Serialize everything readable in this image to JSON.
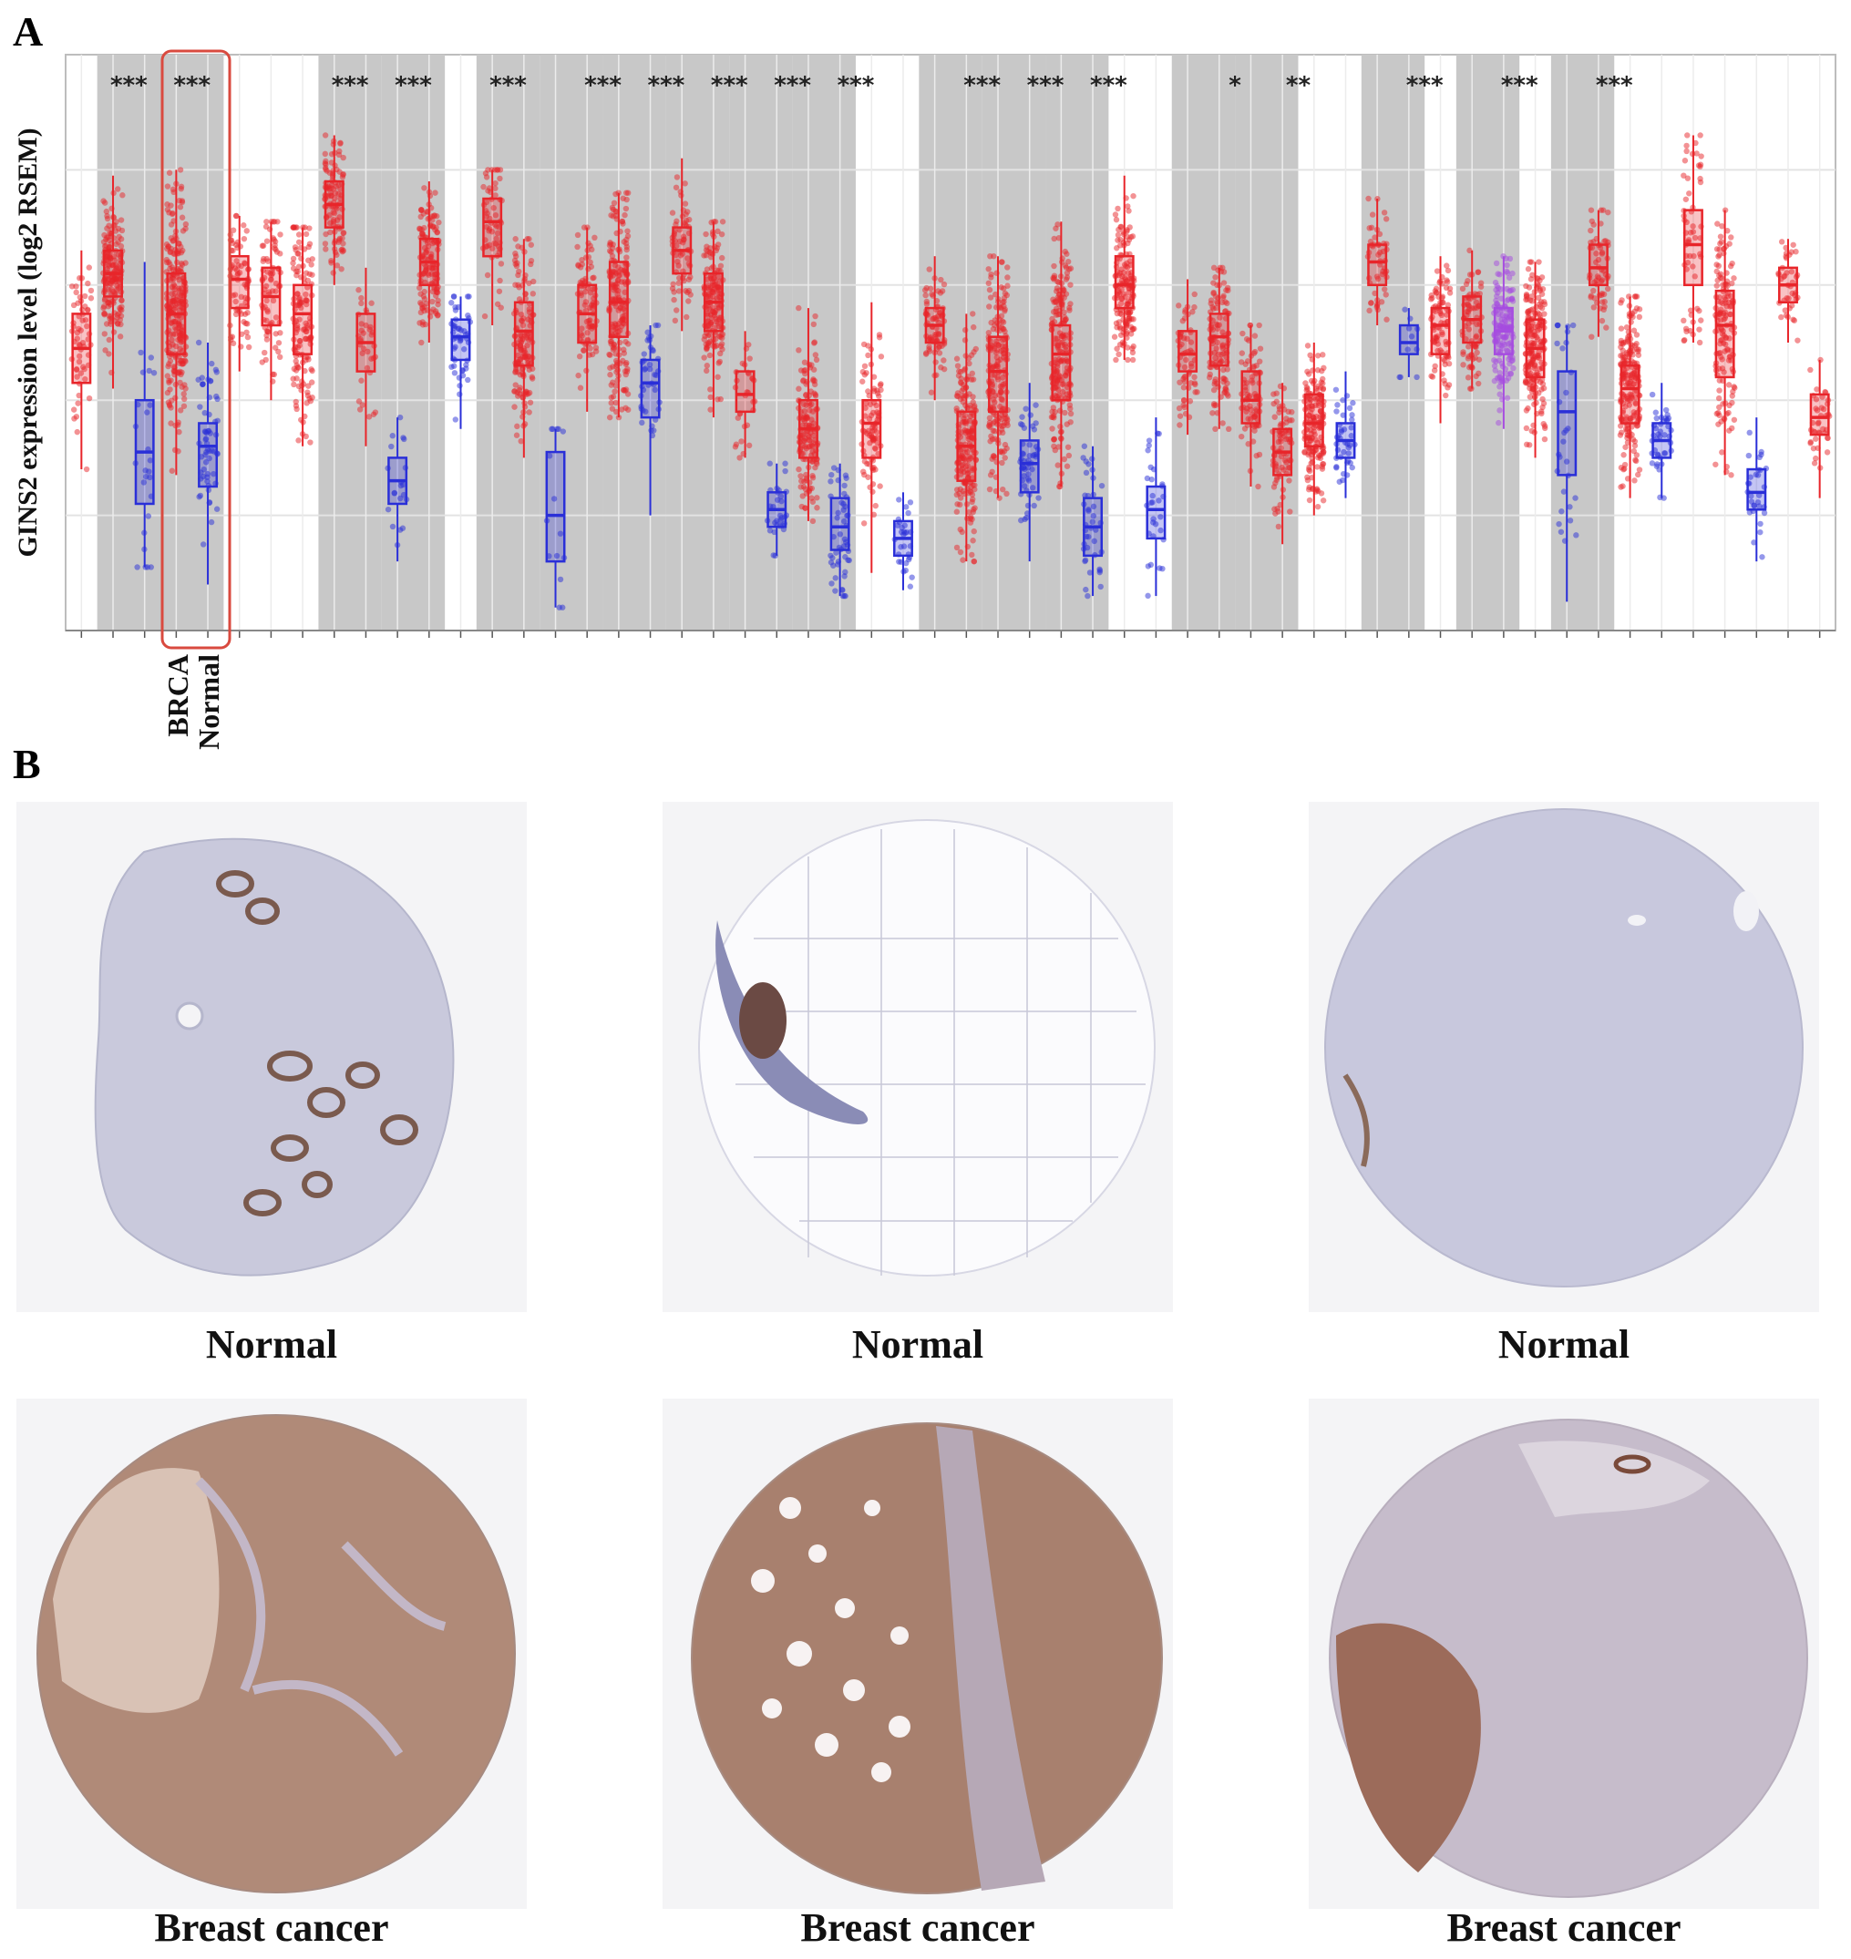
{
  "figure": {
    "panel_a_label": "A",
    "panel_b_label": "B"
  },
  "chart_data": {
    "type": "box",
    "ylabel": "GINS2 expression level (log2  RSEM)",
    "xlabel": "",
    "highlight_labels": [
      "BRCA",
      "Normal"
    ],
    "y_range": [
      -2,
      8
    ],
    "yticks": [
      0,
      2,
      4,
      6
    ],
    "grid": true,
    "colors": {
      "tumor": "#e8252a",
      "normal": "#2a2fd8",
      "metastatic": "#a64ce0",
      "shade": "#c8c8c8",
      "highlight": "#d94a3f"
    },
    "shaded_bands": [
      [
        1,
        2
      ],
      [
        3,
        4
      ],
      [
        8,
        9
      ],
      [
        10,
        11
      ],
      [
        13,
        14
      ],
      [
        15,
        16
      ],
      [
        17,
        18
      ],
      [
        19,
        20
      ],
      [
        21,
        22
      ],
      [
        23,
        24
      ],
      [
        27,
        28
      ],
      [
        29,
        30
      ],
      [
        31,
        32
      ],
      [
        35,
        36
      ],
      [
        37,
        38
      ],
      [
        41,
        42
      ],
      [
        44,
        45
      ],
      [
        47,
        48
      ]
    ],
    "significance": [
      {
        "x": 1.5,
        "label": "***"
      },
      {
        "x": 3.5,
        "label": "***"
      },
      {
        "x": 8.5,
        "label": "***"
      },
      {
        "x": 10.5,
        "label": "***"
      },
      {
        "x": 13.5,
        "label": "***"
      },
      {
        "x": 16.5,
        "label": "***"
      },
      {
        "x": 18.5,
        "label": "***"
      },
      {
        "x": 20.5,
        "label": "***"
      },
      {
        "x": 22.5,
        "label": "***"
      },
      {
        "x": 24.5,
        "label": "***"
      },
      {
        "x": 28.5,
        "label": "***"
      },
      {
        "x": 30.5,
        "label": "***"
      },
      {
        "x": 32.5,
        "label": "***"
      },
      {
        "x": 36.5,
        "label": "*"
      },
      {
        "x": 38.5,
        "label": "**"
      },
      {
        "x": 42.5,
        "label": "***"
      },
      {
        "x": 45.5,
        "label": "***"
      },
      {
        "x": 48.5,
        "label": "***"
      }
    ],
    "boxes": [
      {
        "x": 0,
        "type": "tumor",
        "q1": 2.3,
        "med": 2.9,
        "q3": 3.5,
        "lo": 0.8,
        "hi": 4.6,
        "n": 60
      },
      {
        "x": 1,
        "type": "tumor",
        "q1": 3.8,
        "med": 4.2,
        "q3": 4.6,
        "lo": 2.2,
        "hi": 5.9,
        "n": 180
      },
      {
        "x": 2,
        "type": "normal",
        "q1": 0.2,
        "med": 1.1,
        "q3": 2.0,
        "lo": -0.9,
        "hi": 4.4,
        "n": 25
      },
      {
        "x": 3,
        "type": "tumor",
        "q1": 2.8,
        "med": 3.5,
        "q3": 4.2,
        "lo": 0.7,
        "hi": 6.0,
        "n": 260
      },
      {
        "x": 4,
        "type": "normal",
        "q1": 0.5,
        "med": 1.2,
        "q3": 1.6,
        "lo": -1.2,
        "hi": 3.0,
        "n": 60
      },
      {
        "x": 5,
        "type": "tumor",
        "q1": 3.6,
        "med": 4.1,
        "q3": 4.5,
        "lo": 2.5,
        "hi": 5.2,
        "n": 70
      },
      {
        "x": 6,
        "type": "tumor",
        "q1": 3.3,
        "med": 3.8,
        "q3": 4.3,
        "lo": 2.0,
        "hi": 5.1,
        "n": 80
      },
      {
        "x": 7,
        "type": "tumor",
        "q1": 2.8,
        "med": 3.5,
        "q3": 4.0,
        "lo": 1.2,
        "hi": 5.0,
        "n": 140
      },
      {
        "x": 8,
        "type": "tumor",
        "q1": 5.0,
        "med": 5.4,
        "q3": 5.8,
        "lo": 4.0,
        "hi": 6.6,
        "n": 110
      },
      {
        "x": 9,
        "type": "tumor",
        "q1": 2.5,
        "med": 3.0,
        "q3": 3.5,
        "lo": 1.2,
        "hi": 4.3,
        "n": 35
      },
      {
        "x": 10,
        "type": "normal",
        "q1": 0.2,
        "med": 0.6,
        "q3": 1.0,
        "lo": -0.8,
        "hi": 1.7,
        "n": 20
      },
      {
        "x": 11,
        "type": "tumor",
        "q1": 4.0,
        "med": 4.4,
        "q3": 4.8,
        "lo": 3.0,
        "hi": 5.8,
        "n": 140
      },
      {
        "x": 12,
        "type": "normal",
        "q1": 2.7,
        "med": 3.1,
        "q3": 3.4,
        "lo": 1.5,
        "hi": 3.8,
        "n": 50
      },
      {
        "x": 13,
        "type": "tumor",
        "q1": 4.5,
        "med": 5.1,
        "q3": 5.5,
        "lo": 3.3,
        "hi": 6.0,
        "n": 60
      },
      {
        "x": 14,
        "type": "tumor",
        "q1": 2.6,
        "med": 3.2,
        "q3": 3.7,
        "lo": 1.0,
        "hi": 4.8,
        "n": 150
      },
      {
        "x": 15,
        "type": "normal",
        "q1": -0.8,
        "med": 0.0,
        "q3": 1.1,
        "lo": -1.6,
        "hi": 1.5,
        "n": 15
      },
      {
        "x": 16,
        "type": "tumor",
        "q1": 3.0,
        "med": 3.5,
        "q3": 4.0,
        "lo": 1.8,
        "hi": 5.0,
        "n": 90
      },
      {
        "x": 17,
        "type": "tumor",
        "q1": 3.1,
        "med": 3.7,
        "q3": 4.4,
        "lo": 1.7,
        "hi": 5.6,
        "n": 200
      },
      {
        "x": 18,
        "type": "normal",
        "q1": 1.7,
        "med": 2.3,
        "q3": 2.7,
        "lo": 0.0,
        "hi": 3.3,
        "n": 40
      },
      {
        "x": 19,
        "type": "tumor",
        "q1": 4.2,
        "med": 4.6,
        "q3": 5.0,
        "lo": 3.2,
        "hi": 6.2,
        "n": 70
      },
      {
        "x": 20,
        "type": "tumor",
        "q1": 3.2,
        "med": 3.7,
        "q3": 4.2,
        "lo": 1.7,
        "hi": 5.1,
        "n": 170
      },
      {
        "x": 21,
        "type": "tumor",
        "q1": 1.8,
        "med": 2.1,
        "q3": 2.5,
        "lo": 1.0,
        "hi": 3.2,
        "n": 30
      },
      {
        "x": 22,
        "type": "normal",
        "q1": -0.2,
        "med": 0.1,
        "q3": 0.4,
        "lo": -0.7,
        "hi": 0.9,
        "n": 30
      },
      {
        "x": 23,
        "type": "tumor",
        "q1": 1.0,
        "med": 1.5,
        "q3": 2.0,
        "lo": -0.1,
        "hi": 3.6,
        "n": 150
      },
      {
        "x": 24,
        "type": "normal",
        "q1": -0.6,
        "med": -0.2,
        "q3": 0.3,
        "lo": -1.4,
        "hi": 0.9,
        "n": 50
      },
      {
        "x": 25,
        "type": "tumor",
        "q1": 1.0,
        "med": 1.6,
        "q3": 2.0,
        "lo": -1.0,
        "hi": 3.7,
        "n": 90
      },
      {
        "x": 26,
        "type": "normal",
        "q1": -0.7,
        "med": -0.4,
        "q3": -0.1,
        "lo": -1.3,
        "hi": 0.4,
        "n": 30
      },
      {
        "x": 27,
        "type": "tumor",
        "q1": 3.0,
        "med": 3.3,
        "q3": 3.6,
        "lo": 2.0,
        "hi": 4.5,
        "n": 80
      },
      {
        "x": 28,
        "type": "tumor",
        "q1": 0.6,
        "med": 1.2,
        "q3": 1.8,
        "lo": -0.8,
        "hi": 3.5,
        "n": 200
      },
      {
        "x": 29,
        "type": "tumor",
        "q1": 1.8,
        "med": 2.5,
        "q3": 3.1,
        "lo": 0.3,
        "hi": 4.5,
        "n": 200
      },
      {
        "x": 30,
        "type": "normal",
        "q1": 0.4,
        "med": 0.9,
        "q3": 1.3,
        "lo": -0.8,
        "hi": 2.3,
        "n": 50
      },
      {
        "x": 31,
        "type": "tumor",
        "q1": 2.0,
        "med": 2.8,
        "q3": 3.3,
        "lo": 0.5,
        "hi": 5.1,
        "n": 210
      },
      {
        "x": 32,
        "type": "normal",
        "q1": -0.7,
        "med": -0.2,
        "q3": 0.3,
        "lo": -1.4,
        "hi": 1.2,
        "n": 40
      },
      {
        "x": 33,
        "type": "tumor",
        "q1": 3.6,
        "med": 4.0,
        "q3": 4.5,
        "lo": 2.7,
        "hi": 5.9,
        "n": 160
      },
      {
        "x": 34,
        "type": "normal",
        "q1": -0.4,
        "med": 0.1,
        "q3": 0.5,
        "lo": -1.4,
        "hi": 1.7,
        "n": 30
      },
      {
        "x": 35,
        "type": "tumor",
        "q1": 2.5,
        "med": 2.8,
        "q3": 3.2,
        "lo": 1.4,
        "hi": 4.1,
        "n": 60
      },
      {
        "x": 36,
        "type": "tumor",
        "q1": 2.6,
        "med": 3.1,
        "q3": 3.5,
        "lo": 1.5,
        "hi": 4.3,
        "n": 120
      },
      {
        "x": 37,
        "type": "tumor",
        "q1": 1.6,
        "med": 2.0,
        "q3": 2.5,
        "lo": 0.5,
        "hi": 3.3,
        "n": 80
      },
      {
        "x": 38,
        "type": "tumor",
        "q1": 0.7,
        "med": 1.1,
        "q3": 1.5,
        "lo": -0.5,
        "hi": 2.3,
        "n": 80
      },
      {
        "x": 39,
        "type": "tumor",
        "q1": 1.2,
        "med": 1.6,
        "q3": 2.1,
        "lo": 0.0,
        "hi": 3.0,
        "n": 170
      },
      {
        "x": 40,
        "type": "normal",
        "q1": 1.0,
        "med": 1.3,
        "q3": 1.6,
        "lo": 0.3,
        "hi": 2.5,
        "n": 40
      },
      {
        "x": 41,
        "type": "tumor",
        "q1": 4.0,
        "med": 4.4,
        "q3": 4.7,
        "lo": 3.3,
        "hi": 5.5,
        "n": 50
      },
      {
        "x": 42,
        "type": "normal",
        "q1": 2.8,
        "med": 3.0,
        "q3": 3.3,
        "lo": 2.4,
        "hi": 3.6,
        "n": 10
      },
      {
        "x": 43,
        "type": "tumor",
        "q1": 2.8,
        "med": 3.3,
        "q3": 3.6,
        "lo": 1.6,
        "hi": 4.5,
        "n": 90
      },
      {
        "x": 44,
        "type": "tumor",
        "q1": 3.0,
        "med": 3.4,
        "q3": 3.8,
        "lo": 2.2,
        "hi": 4.6,
        "n": 80
      },
      {
        "x": 45,
        "type": "metastatic",
        "q1": 2.8,
        "med": 3.2,
        "q3": 3.6,
        "lo": 1.5,
        "hi": 4.5,
        "n": 150
      },
      {
        "x": 46,
        "type": "tumor",
        "q1": 2.4,
        "med": 2.9,
        "q3": 3.4,
        "lo": 1.0,
        "hi": 4.4,
        "n": 200
      },
      {
        "x": 47,
        "type": "normal",
        "q1": 0.7,
        "med": 1.8,
        "q3": 2.5,
        "lo": -1.5,
        "hi": 3.3,
        "n": 30
      },
      {
        "x": 48,
        "type": "tumor",
        "q1": 4.0,
        "med": 4.3,
        "q3": 4.7,
        "lo": 3.1,
        "hi": 5.3,
        "n": 60
      },
      {
        "x": 49,
        "type": "tumor",
        "q1": 1.6,
        "med": 2.2,
        "q3": 2.6,
        "lo": 0.3,
        "hi": 3.8,
        "n": 200
      },
      {
        "x": 50,
        "type": "normal",
        "q1": 1.0,
        "med": 1.3,
        "q3": 1.6,
        "lo": 0.3,
        "hi": 2.3,
        "n": 40
      },
      {
        "x": 51,
        "type": "tumor",
        "q1": 4.0,
        "med": 4.7,
        "q3": 5.3,
        "lo": 3.0,
        "hi": 6.6,
        "n": 60
      },
      {
        "x": 52,
        "type": "tumor",
        "q1": 2.4,
        "med": 3.3,
        "q3": 3.9,
        "lo": 0.7,
        "hi": 5.3,
        "n": 150
      },
      {
        "x": 53,
        "type": "normal",
        "q1": 0.1,
        "med": 0.4,
        "q3": 0.8,
        "lo": -0.8,
        "hi": 1.7,
        "n": 30
      },
      {
        "x": 54,
        "type": "tumor",
        "q1": 3.7,
        "med": 4.0,
        "q3": 4.3,
        "lo": 3.0,
        "hi": 4.8,
        "n": 40
      },
      {
        "x": 55,
        "type": "tumor",
        "q1": 1.4,
        "med": 1.7,
        "q3": 2.1,
        "lo": 0.3,
        "hi": 2.7,
        "n": 40
      }
    ]
  },
  "panel_b": {
    "captions": [
      "Normal",
      "Normal",
      "Normal",
      "Breast cancer",
      "Breast cancer",
      "Breast cancer"
    ]
  }
}
